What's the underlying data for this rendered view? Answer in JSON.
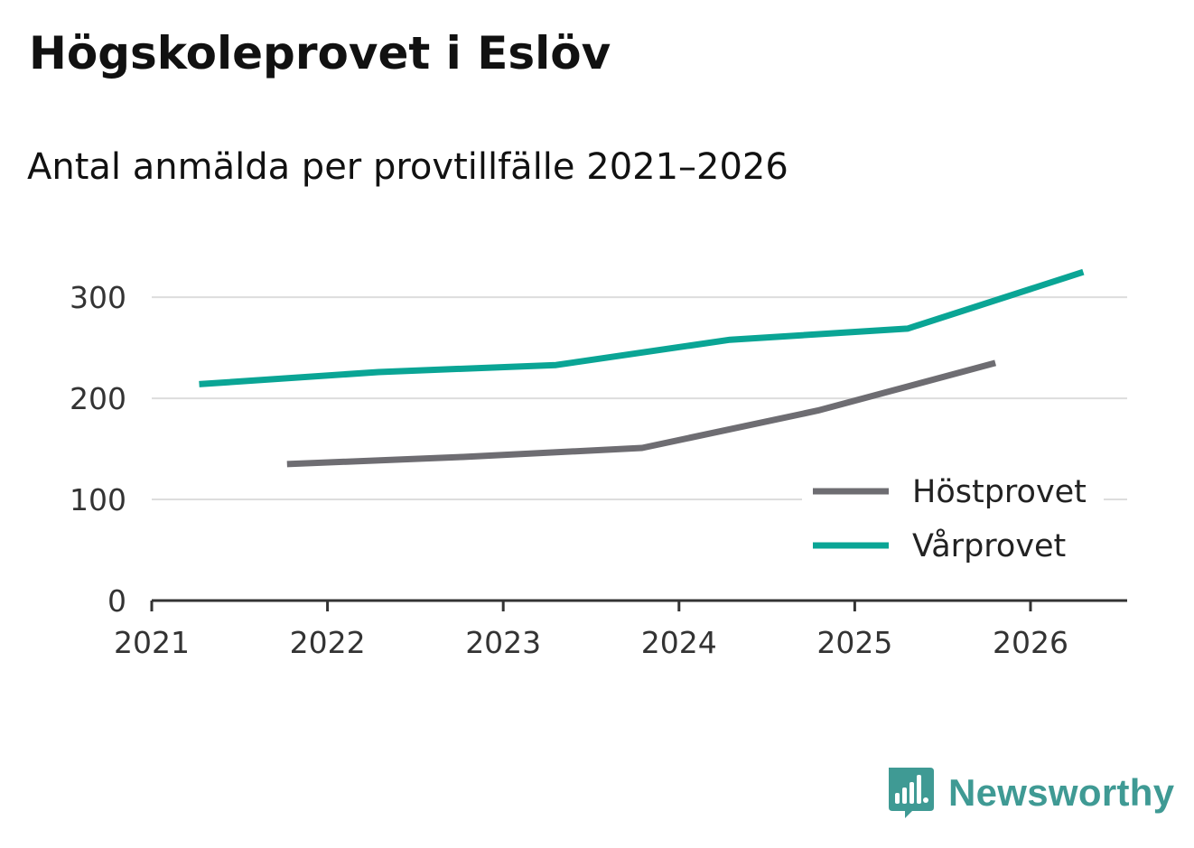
{
  "title": "Högskoleprovet i Eslöv",
  "subtitle": "Antal anmälda per provtillfälle 2021–2026",
  "brand": {
    "name": "Newsworthy",
    "icon": "newsworthy-logo-icon",
    "color": "#3f9a94"
  },
  "chart_data": {
    "type": "line",
    "title": "Högskoleprovet i Eslöv",
    "subtitle": "Antal anmälda per provtillfälle 2021–2026",
    "xlabel": "",
    "ylabel": "",
    "xlim": [
      2021,
      2026.55
    ],
    "ylim": [
      0,
      335
    ],
    "x_ticks": [
      "2021",
      "2022",
      "2023",
      "2024",
      "2025",
      "2026"
    ],
    "y_ticks": [
      "0",
      "100",
      "200",
      "300"
    ],
    "grid": true,
    "legend_position": "bottom-right",
    "series": [
      {
        "name": "Höstprovet",
        "color": "#6e6d72",
        "x": [
          2021.77,
          2022.77,
          2023.79,
          2024.79,
          2025.8
        ],
        "values": [
          135,
          142,
          151,
          188,
          235
        ]
      },
      {
        "name": "Vårprovet",
        "color": "#0aa595",
        "x": [
          2021.27,
          2022.29,
          2023.3,
          2024.29,
          2025.3,
          2026.3
        ],
        "values": [
          214,
          226,
          233,
          258,
          269,
          325
        ]
      }
    ]
  }
}
